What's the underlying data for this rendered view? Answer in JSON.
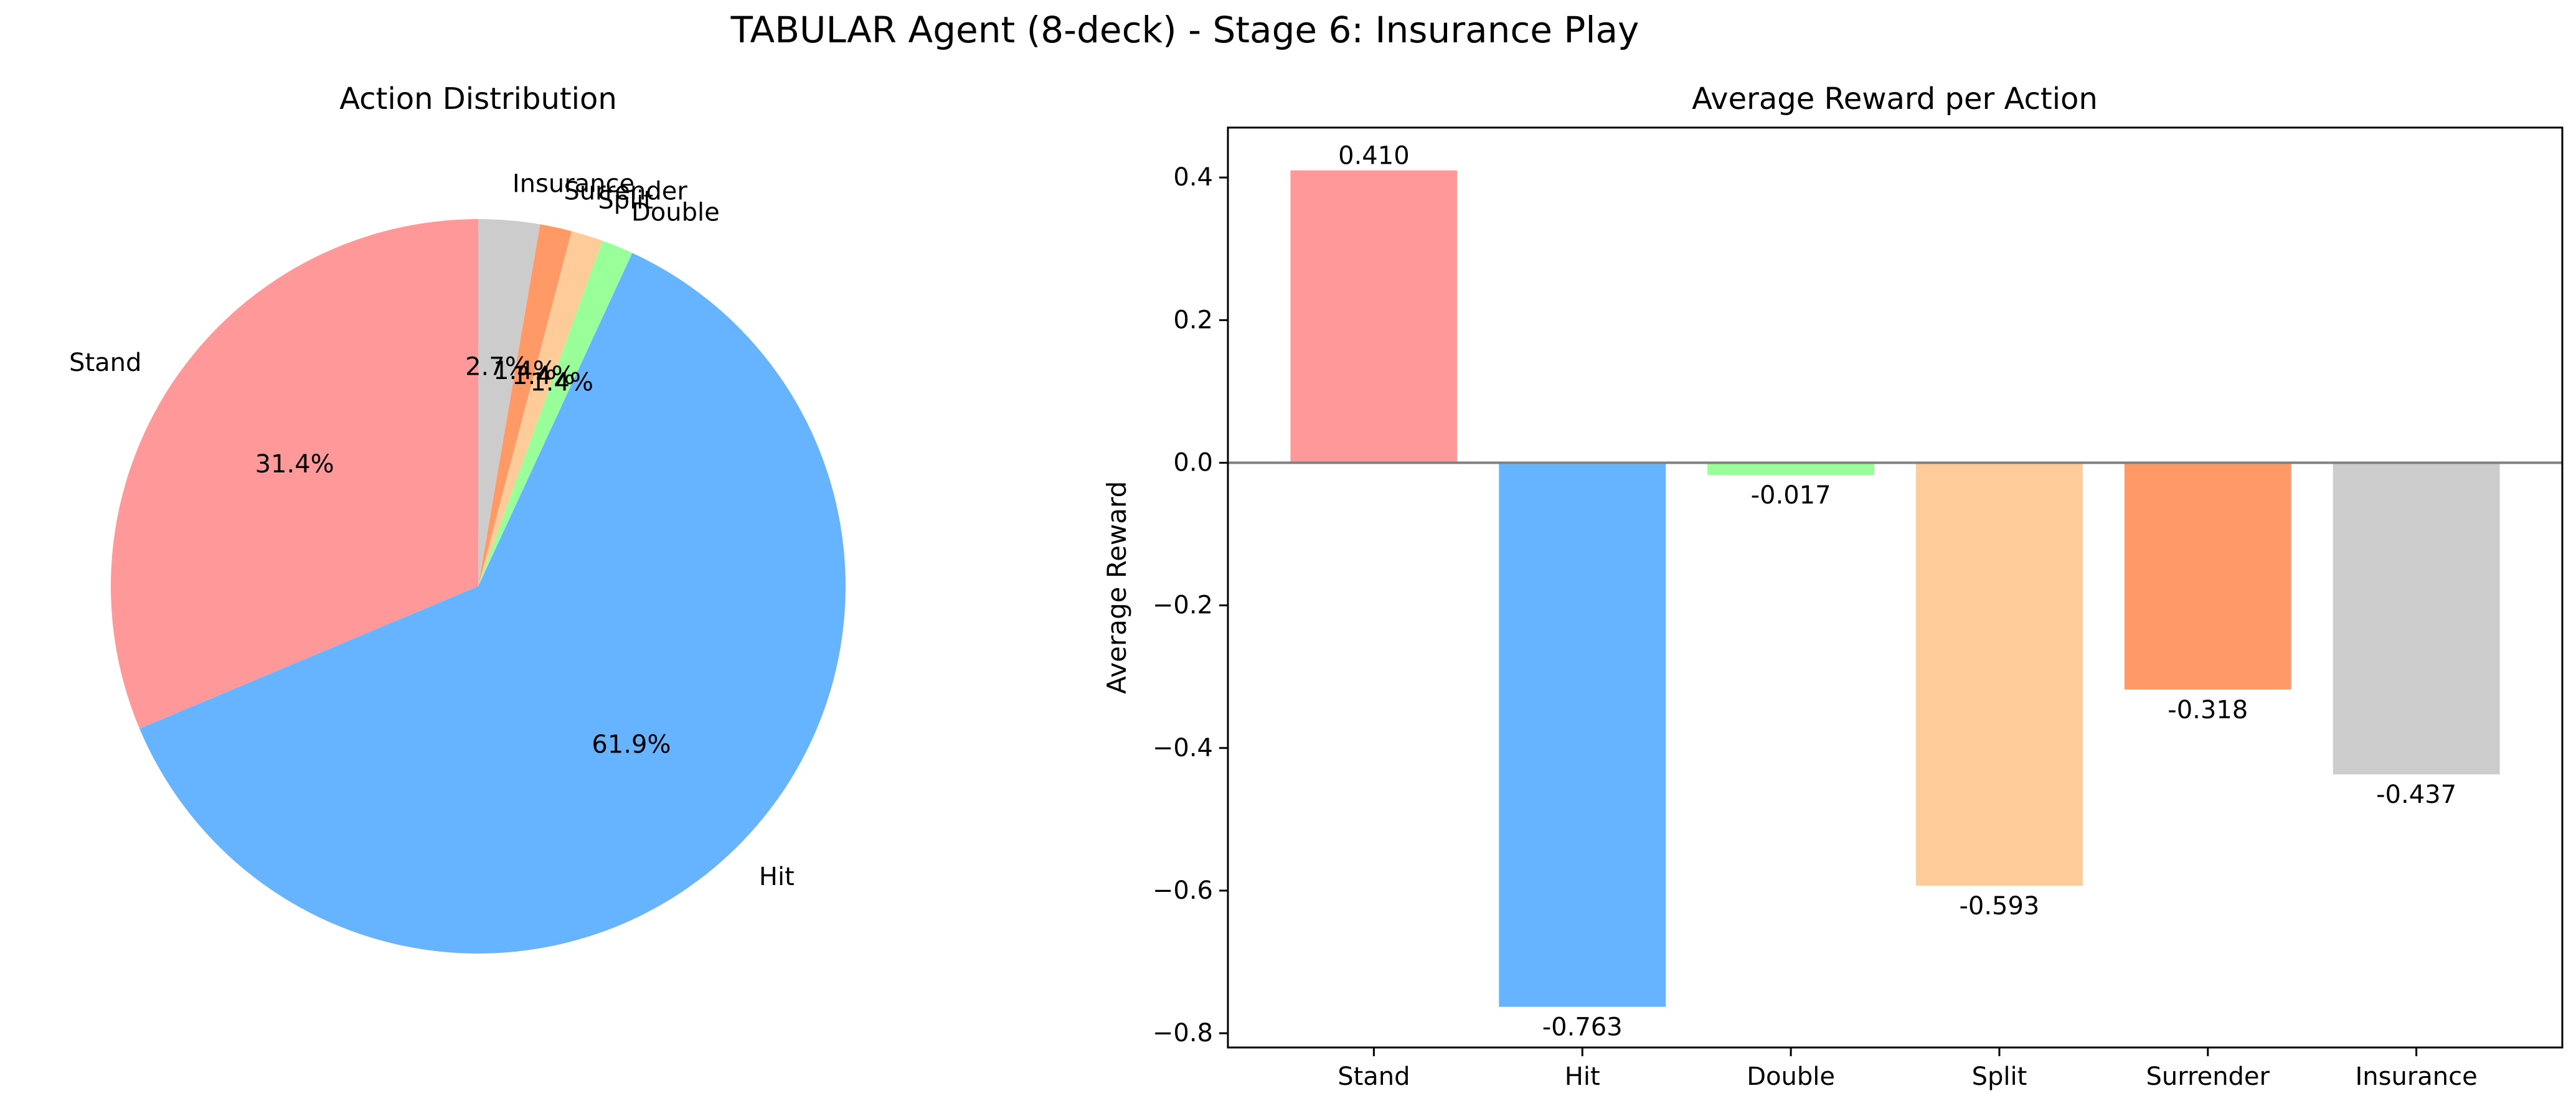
{
  "figure": {
    "suptitle": "TABULAR Agent (8-deck) - Stage 6: Insurance Play"
  },
  "chart_data": [
    {
      "type": "pie",
      "title": "Action Distribution",
      "start_angle_deg": 90,
      "direction": "counterclockwise",
      "slices": [
        {
          "label": "Stand",
          "percent_label": "31.4%",
          "value": 31.4,
          "color": "#ff9999"
        },
        {
          "label": "Hit",
          "percent_label": "61.9%",
          "value": 61.9,
          "color": "#66b3ff"
        },
        {
          "label": "Double",
          "percent_label": "1.4%",
          "value": 1.4,
          "color": "#99ff99"
        },
        {
          "label": "Split",
          "percent_label": "1.4%",
          "value": 1.4,
          "color": "#ffcc99"
        },
        {
          "label": "Surrender",
          "percent_label": "1.4%",
          "value": 1.4,
          "color": "#ff9966"
        },
        {
          "label": "Insurance",
          "percent_label": "2.7%",
          "value": 2.7,
          "color": "#cccccc"
        }
      ]
    },
    {
      "type": "bar",
      "title": "Average Reward per Action",
      "xlabel": "",
      "ylabel": "Average Reward",
      "ylim": [
        -0.82,
        0.47
      ],
      "yticks": [
        0.4,
        0.2,
        0.0,
        -0.2,
        -0.4,
        -0.6,
        -0.8
      ],
      "ytick_labels": [
        "0.4",
        "0.2",
        "0.0",
        "−0.2",
        "−0.4",
        "−0.6",
        "−0.8"
      ],
      "zero_line": true,
      "categories": [
        "Stand",
        "Hit",
        "Double",
        "Split",
        "Surrender",
        "Insurance"
      ],
      "values": [
        0.41,
        -0.763,
        -0.017,
        -0.593,
        -0.318,
        -0.437
      ],
      "value_labels": [
        "0.410",
        "-0.763",
        "-0.017",
        "-0.593",
        "-0.318",
        "-0.437"
      ],
      "colors": [
        "#ff9999",
        "#66b3ff",
        "#99ff99",
        "#ffcc99",
        "#ff9966",
        "#cccccc"
      ]
    }
  ]
}
